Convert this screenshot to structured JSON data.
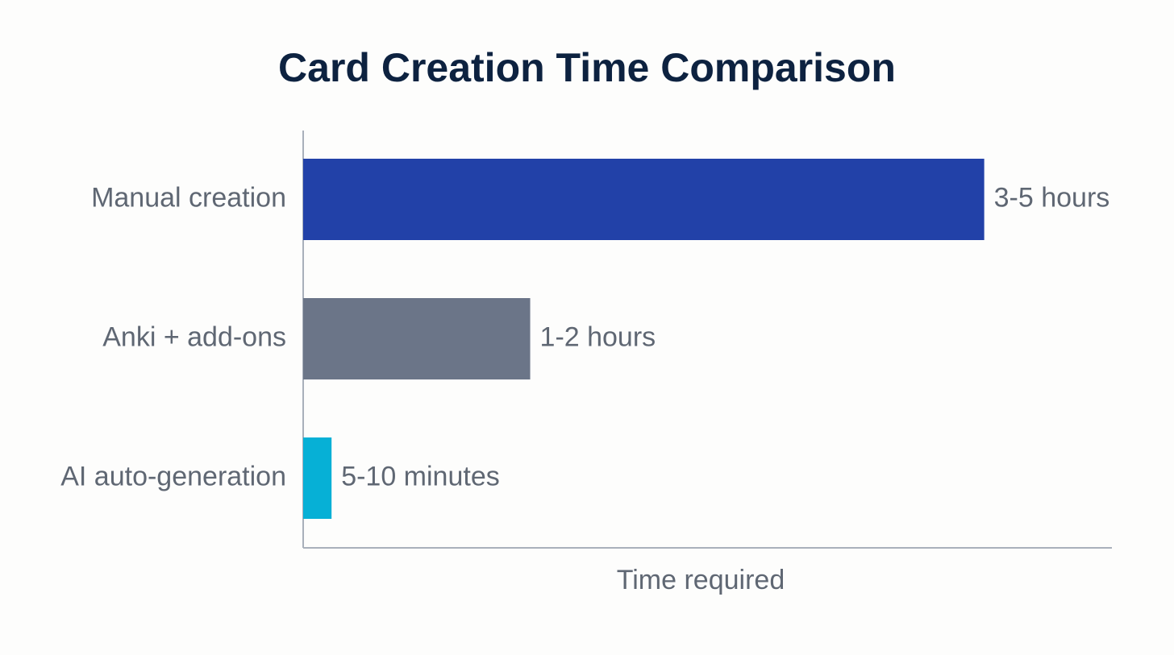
{
  "chart_data": {
    "type": "hbar",
    "title": "Card Creation Time Comparison",
    "categories": [
      "Manual creation",
      "Anki + add-ons",
      "AI auto-generation"
    ],
    "values": [
      240,
      80,
      10
    ],
    "value_labels": [
      "3-5 hours",
      "1-2 hours",
      "5-10 minutes"
    ],
    "colors": [
      "#2241a8",
      "#6b7588",
      "#06b0d6"
    ],
    "x_label": "Time required",
    "xlim": [
      0,
      285
    ]
  }
}
